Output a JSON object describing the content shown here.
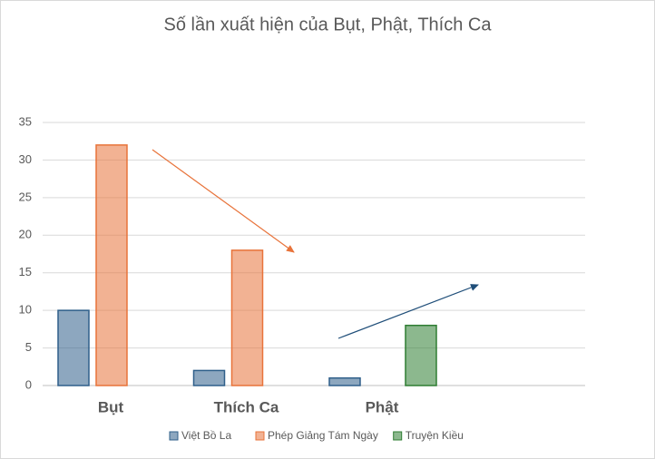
{
  "chart_data": {
    "type": "bar",
    "title": "Số lần xuất hiện của Bụt, Phật, Thích Ca",
    "categories": [
      "Bụt",
      "Thích Ca",
      "Phật",
      null
    ],
    "series": [
      {
        "name": "Việt Bồ La",
        "color": "#2f5f8a",
        "values": [
          10,
          2,
          1,
          null
        ]
      },
      {
        "name": "Phép Giảng Tám Ngày",
        "color": "#e8733a",
        "values": [
          32,
          18,
          null,
          null
        ]
      },
      {
        "name": "Truyện Kiều",
        "color": "#2e7d32",
        "values": [
          null,
          null,
          8,
          null
        ]
      }
    ],
    "ylim": [
      0,
      35
    ],
    "yticks": [
      0,
      5,
      10,
      15,
      20,
      25,
      30,
      35
    ],
    "grid": true,
    "legend": "bottom"
  }
}
